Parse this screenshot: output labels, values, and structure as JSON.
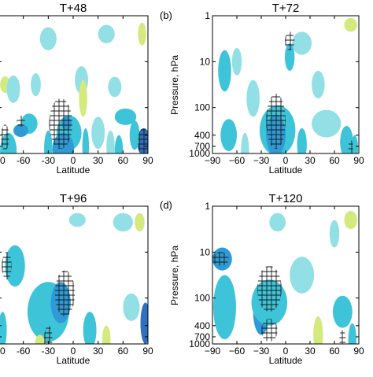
{
  "figure": {
    "panels": [
      {
        "title": "T+48",
        "letter": "",
        "xlabel": "Latitude",
        "ylabel": "",
        "xticks": [
          "-90",
          "-60",
          "-30",
          "0",
          "30",
          "60",
          "90"
        ],
        "yticks": [],
        "blobs": [
          {
            "x": -53,
            "y": 2.35,
            "rx": 10,
            "ry": 0.22,
            "c": "teal"
          },
          {
            "x": -63,
            "y": 2.5,
            "rx": 9,
            "ry": 0.14,
            "c": "dark"
          },
          {
            "x": -5,
            "y": 2.55,
            "rx": 15,
            "ry": 0.38,
            "c": "teal"
          },
          {
            "x": -12,
            "y": 2.9,
            "rx": 13,
            "ry": 0.35,
            "c": "dark"
          },
          {
            "x": -8,
            "y": 2.35,
            "rx": 6,
            "ry": 0.15,
            "c": "dark"
          },
          {
            "x": 63,
            "y": 2.2,
            "rx": 13,
            "ry": 0.18,
            "c": "teal"
          },
          {
            "x": 85,
            "y": 2.75,
            "rx": 8,
            "ry": 0.3,
            "c": "navy"
          },
          {
            "x": 74,
            "y": 2.6,
            "rx": 6,
            "ry": 0.32,
            "c": "teal"
          },
          {
            "x": 30,
            "y": 2.55,
            "rx": 8,
            "ry": 0.35,
            "c": "light"
          },
          {
            "x": 45,
            "y": 2.85,
            "rx": 5,
            "ry": 0.35,
            "c": "light"
          },
          {
            "x": -78,
            "y": 2.95,
            "rx": 10,
            "ry": 0.4,
            "c": "teal"
          },
          {
            "x": -82,
            "y": 1.5,
            "rx": 6,
            "ry": 0.18,
            "c": "yellow"
          },
          {
            "x": -72,
            "y": 1.6,
            "rx": 8,
            "ry": 0.3,
            "c": "light"
          },
          {
            "x": -45,
            "y": 1.5,
            "rx": 6,
            "ry": 0.25,
            "c": "light"
          },
          {
            "x": 10,
            "y": 1.4,
            "rx": 8,
            "ry": 0.3,
            "c": "light"
          },
          {
            "x": 12,
            "y": 1.8,
            "rx": 5,
            "ry": 0.4,
            "c": "yellow"
          },
          {
            "x": 50,
            "y": 1.55,
            "rx": 8,
            "ry": 0.22,
            "c": "light"
          },
          {
            "x": 83,
            "y": 0.4,
            "rx": 5,
            "ry": 0.25,
            "c": "yellow"
          },
          {
            "x": 40,
            "y": 0.4,
            "rx": 10,
            "ry": 0.2,
            "c": "light"
          },
          {
            "x": -30,
            "y": 0.5,
            "rx": 10,
            "ry": 0.25,
            "c": "light"
          },
          {
            "x": -30,
            "y": 2.9,
            "rx": 5,
            "ry": 0.4,
            "c": "teal"
          },
          {
            "x": 15,
            "y": 2.85,
            "rx": 4,
            "ry": 0.4,
            "c": "teal"
          },
          {
            "x": 55,
            "y": 2.95,
            "rx": 5,
            "ry": 0.35,
            "c": "teal"
          }
        ],
        "hatches": [
          {
            "x": -15,
            "y": 2.35,
            "rx": 14,
            "ry": 0.55
          },
          {
            "x": -63,
            "y": 2.3,
            "rx": 5,
            "ry": 0.12
          },
          {
            "x": 84,
            "y": 2.75,
            "rx": 6,
            "ry": 0.3
          },
          {
            "x": -82,
            "y": 2.65,
            "rx": 5,
            "ry": 0.28
          }
        ]
      },
      {
        "title": "T+72",
        "letter": "(b)",
        "xlabel": "Latitude",
        "ylabel": "Pressure, hPa",
        "xticks": [
          "−90",
          "−60",
          "−30",
          "0",
          "30",
          "60",
          "90"
        ],
        "yticks": [
          "1",
          "10",
          "100",
          "400",
          "700",
          "1000"
        ],
        "blobs": [
          {
            "x": -75,
            "y": 1.2,
            "rx": 8,
            "ry": 0.45,
            "c": "teal"
          },
          {
            "x": -60,
            "y": 1.0,
            "rx": 6,
            "ry": 0.3,
            "c": "light"
          },
          {
            "x": -10,
            "y": 2.5,
            "rx": 22,
            "ry": 0.55,
            "c": "teal"
          },
          {
            "x": -12,
            "y": 2.6,
            "rx": 12,
            "ry": 0.45,
            "c": "dark"
          },
          {
            "x": -70,
            "y": 2.6,
            "rx": 10,
            "ry": 0.35,
            "c": "teal"
          },
          {
            "x": 20,
            "y": 2.8,
            "rx": 6,
            "ry": 0.35,
            "c": "teal"
          },
          {
            "x": 50,
            "y": 2.35,
            "rx": 18,
            "ry": 0.3,
            "c": "light"
          },
          {
            "x": 75,
            "y": 2.75,
            "rx": 8,
            "ry": 0.35,
            "c": "teal"
          },
          {
            "x": 80,
            "y": 0.2,
            "rx": 8,
            "ry": 0.15,
            "c": "yellow"
          },
          {
            "x": 20,
            "y": 0.6,
            "rx": 12,
            "ry": 0.25,
            "c": "light"
          },
          {
            "x": 40,
            "y": 1.5,
            "rx": 8,
            "ry": 0.3,
            "c": "light"
          },
          {
            "x": -40,
            "y": 1.8,
            "rx": 8,
            "ry": 0.4,
            "c": "light"
          },
          {
            "x": 5,
            "y": 0.9,
            "rx": 6,
            "ry": 0.3,
            "c": "teal"
          },
          {
            "x": -50,
            "y": 2.95,
            "rx": 5,
            "ry": 0.4,
            "c": "light"
          },
          {
            "x": 85,
            "y": 2.9,
            "rx": 4,
            "ry": 0.3,
            "c": "teal"
          }
        ],
        "hatches": [
          {
            "x": -12,
            "y": 2.3,
            "rx": 12,
            "ry": 0.6
          },
          {
            "x": 5,
            "y": 0.55,
            "rx": 6,
            "ry": 0.2
          },
          {
            "x": 80,
            "y": 2.9,
            "rx": 3,
            "ry": 0.2
          }
        ]
      },
      {
        "title": "T+96",
        "letter": "",
        "xlabel": "Latitude",
        "ylabel": "",
        "xticks": [
          "-90",
          "-60",
          "-30",
          "0",
          "30",
          "60",
          "90"
        ],
        "yticks": [],
        "blobs": [
          {
            "x": -70,
            "y": 1.3,
            "rx": 12,
            "ry": 0.45,
            "c": "teal"
          },
          {
            "x": -30,
            "y": 2.3,
            "rx": 25,
            "ry": 0.65,
            "c": "teal"
          },
          {
            "x": -15,
            "y": 2.1,
            "rx": 12,
            "ry": 0.45,
            "c": "dark"
          },
          {
            "x": 20,
            "y": 2.7,
            "rx": 8,
            "ry": 0.4,
            "c": "teal"
          },
          {
            "x": 70,
            "y": 2.2,
            "rx": 10,
            "ry": 0.3,
            "c": "light"
          },
          {
            "x": 87,
            "y": 2.55,
            "rx": 6,
            "ry": 0.45,
            "c": "navy"
          },
          {
            "x": 60,
            "y": 0.35,
            "rx": 12,
            "ry": 0.2,
            "c": "light"
          },
          {
            "x": 80,
            "y": 0.35,
            "rx": 6,
            "ry": 0.2,
            "c": "yellow"
          },
          {
            "x": 5,
            "y": 0.3,
            "rx": 10,
            "ry": 0.15,
            "c": "light"
          },
          {
            "x": -40,
            "y": 3.0,
            "rx": 6,
            "ry": 0.2,
            "c": "yellow"
          },
          {
            "x": -85,
            "y": 2.7,
            "rx": 5,
            "ry": 0.4,
            "c": "teal"
          },
          {
            "x": 40,
            "y": 2.9,
            "rx": 5,
            "ry": 0.3,
            "c": "yellow"
          }
        ],
        "hatches": [
          {
            "x": -10,
            "y": 1.9,
            "rx": 12,
            "ry": 0.5
          },
          {
            "x": -80,
            "y": 1.3,
            "rx": 6,
            "ry": 0.3
          },
          {
            "x": -30,
            "y": 2.9,
            "rx": 5,
            "ry": 0.3
          }
        ]
      },
      {
        "title": "T+120",
        "letter": "(d)",
        "xlabel": "Latitude",
        "ylabel": "Pressure, hPa",
        "xticks": [
          "−90",
          "−60",
          "−30",
          "0",
          "30",
          "60",
          "90"
        ],
        "yticks": [
          "1",
          "10",
          "100",
          "400",
          "700",
          "1000"
        ],
        "blobs": [
          {
            "x": -78,
            "y": 1.15,
            "rx": 12,
            "ry": 0.25,
            "c": "dark"
          },
          {
            "x": -75,
            "y": 2.2,
            "rx": 14,
            "ry": 0.7,
            "c": "teal"
          },
          {
            "x": -30,
            "y": 2.3,
            "rx": 10,
            "ry": 0.5,
            "c": "dark"
          },
          {
            "x": -20,
            "y": 2.1,
            "rx": 22,
            "ry": 0.5,
            "c": "teal"
          },
          {
            "x": 20,
            "y": 1.5,
            "rx": 15,
            "ry": 0.4,
            "c": "light"
          },
          {
            "x": 70,
            "y": 2.3,
            "rx": 12,
            "ry": 0.35,
            "c": "teal"
          },
          {
            "x": 80,
            "y": 0.3,
            "rx": 8,
            "ry": 0.2,
            "c": "yellow"
          },
          {
            "x": 60,
            "y": 0.6,
            "rx": 6,
            "ry": 0.3,
            "c": "light"
          },
          {
            "x": -10,
            "y": 0.35,
            "rx": 10,
            "ry": 0.2,
            "c": "light"
          },
          {
            "x": 40,
            "y": 2.8,
            "rx": 6,
            "ry": 0.4,
            "c": "yellow"
          },
          {
            "x": 82,
            "y": 2.9,
            "rx": 5,
            "ry": 0.35,
            "c": "teal"
          }
        ],
        "hatches": [
          {
            "x": -80,
            "y": 1.15,
            "rx": 10,
            "ry": 0.15
          },
          {
            "x": -20,
            "y": 1.8,
            "rx": 15,
            "ry": 0.5
          },
          {
            "x": -20,
            "y": 2.7,
            "rx": 10,
            "ry": 0.25
          },
          {
            "x": 70,
            "y": 2.9,
            "rx": 4,
            "ry": 0.2
          }
        ]
      }
    ]
  },
  "chart_data": [
    {
      "type": "heatmap",
      "title": "T+48",
      "xlabel": "Latitude",
      "ylabel": "",
      "x_ticks": [
        -90,
        -60,
        -30,
        0,
        30,
        60,
        90
      ],
      "xlim": [
        -90,
        90
      ],
      "y_ticks": [
        1,
        10,
        100,
        400,
        700,
        1000
      ],
      "ylim": [
        1000,
        1
      ],
      "y_scale": "log",
      "colormap": [
        "#3d82c7",
        "#38a9d8",
        "#46c8d6",
        "#8edfe3",
        "#cfe98a",
        "#f2e35c"
      ]
    },
    {
      "type": "heatmap",
      "title": "T+72",
      "xlabel": "Latitude",
      "ylabel": "Pressure, hPa",
      "x_ticks": [
        -90,
        -60,
        -30,
        0,
        30,
        60,
        90
      ],
      "xlim": [
        -90,
        90
      ],
      "y_ticks": [
        1,
        10,
        100,
        400,
        700,
        1000
      ],
      "ylim": [
        1000,
        1
      ],
      "y_scale": "log",
      "colormap": [
        "#3d82c7",
        "#38a9d8",
        "#46c8d6",
        "#8edfe3",
        "#cfe98a",
        "#f2e35c"
      ]
    },
    {
      "type": "heatmap",
      "title": "T+96",
      "xlabel": "Latitude",
      "ylabel": "",
      "x_ticks": [
        -90,
        -60,
        -30,
        0,
        30,
        60,
        90
      ],
      "xlim": [
        -90,
        90
      ],
      "y_ticks": [
        1,
        10,
        100,
        400,
        700,
        1000
      ],
      "ylim": [
        1000,
        1
      ],
      "y_scale": "log",
      "colormap": [
        "#3d82c7",
        "#38a9d8",
        "#46c8d6",
        "#8edfe3",
        "#cfe98a",
        "#f2e35c"
      ]
    },
    {
      "type": "heatmap",
      "title": "T+120",
      "xlabel": "Latitude",
      "ylabel": "Pressure, hPa",
      "x_ticks": [
        -90,
        -60,
        -30,
        0,
        30,
        60,
        90
      ],
      "xlim": [
        -90,
        90
      ],
      "y_ticks": [
        1,
        10,
        100,
        400,
        700,
        1000
      ],
      "ylim": [
        1000,
        1
      ],
      "y_scale": "log",
      "colormap": [
        "#3d82c7",
        "#38a9d8",
        "#46c8d6",
        "#8edfe3",
        "#cfe98a",
        "#f2e35c"
      ]
    }
  ],
  "colors": {
    "navy": "#2f6fbf",
    "dark": "#2f9bd6",
    "teal": "#3ec4d8",
    "light": "#92e0e6",
    "yellow": "#d5ea7e",
    "hatch": "#1a1a1a"
  }
}
